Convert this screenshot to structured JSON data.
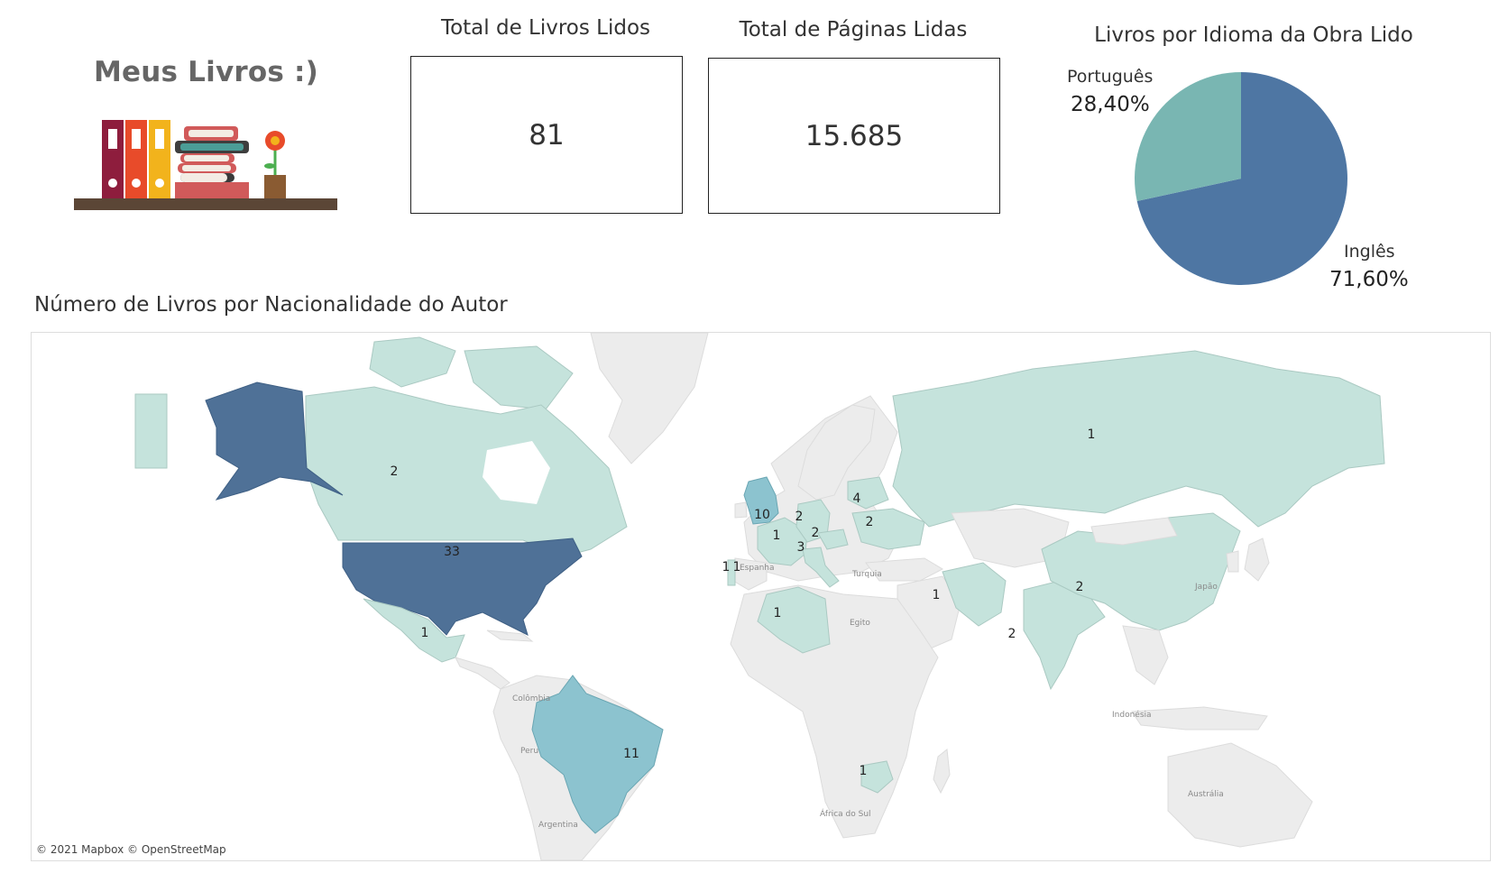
{
  "header": {
    "title": "Meus Livros :)"
  },
  "kpis": [
    {
      "title": "Total de Livros Lidos",
      "value": "81"
    },
    {
      "title": "Total de Páginas Lidas",
      "value": "15.685"
    }
  ],
  "pie": {
    "title": "Livros por Idioma da Obra Lido",
    "slices": [
      {
        "label": "Inglês",
        "value": 71.6,
        "display": "71,60%",
        "color": "#4e76a3"
      },
      {
        "label": "Português",
        "value": 28.4,
        "display": "28,40%",
        "color": "#79b6b2"
      }
    ]
  },
  "map": {
    "title": "Número de Livros por Nacionalidade do Autor",
    "credit": "© 2021 Mapbox © OpenStreetMap",
    "colors": {
      "high": "#4f7197",
      "mid": "#8cc3cf",
      "low": "#c5e3dc",
      "land": "#ececec",
      "water": "#ffffff"
    },
    "place_labels": [
      "Turquia",
      "Egito",
      "Colômbia",
      "Peru",
      "Argentina",
      "Japão",
      "Indonésia",
      "Austrália",
      "África do Sul",
      "Espanha"
    ]
  },
  "chart_data": [
    {
      "type": "pie",
      "title": "Livros por Idioma da Obra Lido",
      "categories": [
        "Inglês",
        "Português"
      ],
      "values": [
        71.6,
        28.4
      ],
      "unit": "%"
    },
    {
      "type": "map",
      "title": "Número de Livros por Nacionalidade do Autor",
      "values": [
        33,
        11,
        10,
        4,
        3,
        2,
        2,
        2,
        2,
        2,
        2,
        1,
        1,
        1,
        1,
        1,
        1,
        1,
        1
      ]
    }
  ]
}
